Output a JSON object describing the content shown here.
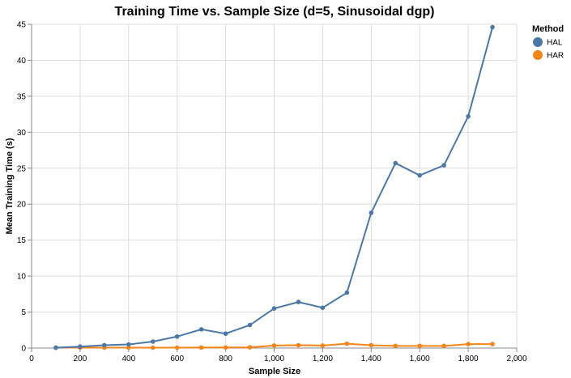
{
  "chart_data": {
    "type": "line",
    "title": "Training Time vs. Sample Size (d=5, Sinusoidal dgp)",
    "xlabel": "Sample Size",
    "ylabel": "Mean Training Time (s)",
    "xlim": [
      0,
      2000
    ],
    "ylim": [
      0,
      45
    ],
    "x_ticks": [
      0,
      200,
      400,
      600,
      800,
      1000,
      1200,
      1400,
      1600,
      1800,
      2000
    ],
    "x_tick_labels": [
      "0",
      "200",
      "400",
      "600",
      "800",
      "1,000",
      "1,200",
      "1,400",
      "1,600",
      "1,800",
      "2,000"
    ],
    "y_ticks": [
      0,
      5,
      10,
      15,
      20,
      25,
      30,
      35,
      40,
      45
    ],
    "y_tick_labels": [
      "0",
      "5",
      "10",
      "15",
      "20",
      "25",
      "30",
      "35",
      "40",
      "45"
    ],
    "grid": true,
    "legend": {
      "title": "Method",
      "placement": "top-right"
    },
    "x": [
      100,
      200,
      300,
      400,
      500,
      600,
      700,
      800,
      900,
      1000,
      1100,
      1200,
      1300,
      1400,
      1500,
      1600,
      1700,
      1800,
      1900
    ],
    "series": [
      {
        "name": "HAL",
        "color": "#4c78a8",
        "values": [
          0.05,
          0.2,
          0.4,
          0.5,
          0.9,
          1.6,
          2.6,
          2.0,
          3.2,
          5.5,
          6.4,
          5.6,
          7.7,
          18.8,
          25.7,
          24.0,
          25.4,
          32.2,
          44.6
        ]
      },
      {
        "name": "HAR",
        "color": "#f58518",
        "values": [
          0.05,
          0.07,
          0.05,
          0.05,
          0.05,
          0.05,
          0.07,
          0.08,
          0.1,
          0.35,
          0.4,
          0.35,
          0.6,
          0.4,
          0.3,
          0.3,
          0.3,
          0.55,
          0.55
        ]
      }
    ]
  }
}
